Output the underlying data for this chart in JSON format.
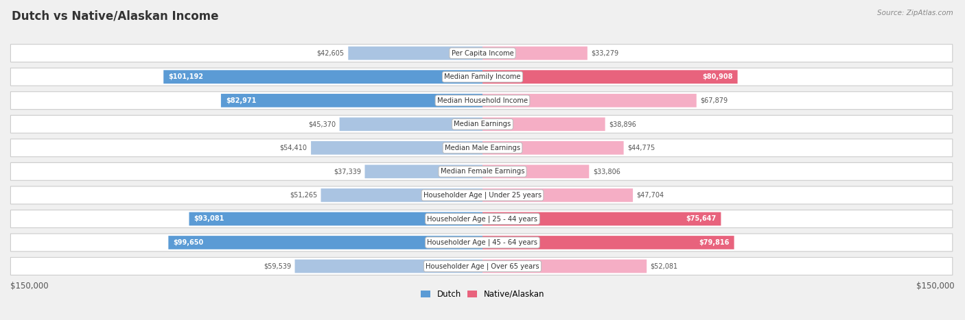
{
  "title": "Dutch vs Native/Alaskan Income",
  "source": "Source: ZipAtlas.com",
  "categories": [
    "Per Capita Income",
    "Median Family Income",
    "Median Household Income",
    "Median Earnings",
    "Median Male Earnings",
    "Median Female Earnings",
    "Householder Age | Under 25 years",
    "Householder Age | 25 - 44 years",
    "Householder Age | 45 - 64 years",
    "Householder Age | Over 65 years"
  ],
  "dutch_values": [
    42605,
    101192,
    82971,
    45370,
    54410,
    37339,
    51265,
    93081,
    99650,
    59539
  ],
  "native_values": [
    33279,
    80908,
    67879,
    38896,
    44775,
    33806,
    47704,
    75647,
    79816,
    52081
  ],
  "dutch_labels": [
    "$42,605",
    "$101,192",
    "$82,971",
    "$45,370",
    "$54,410",
    "$37,339",
    "$51,265",
    "$93,081",
    "$99,650",
    "$59,539"
  ],
  "native_labels": [
    "$33,279",
    "$80,908",
    "$67,879",
    "$38,896",
    "$44,775",
    "$33,806",
    "$47,704",
    "$75,647",
    "$79,816",
    "$52,081"
  ],
  "dutch_color_light": "#aac4e2",
  "dutch_color_dark": "#5b9bd5",
  "native_color_light": "#f5aec5",
  "native_color_dark": "#e8637d",
  "max_value": 150000,
  "xlabel_left": "$150,000",
  "xlabel_right": "$150,000",
  "legend_dutch": "Dutch",
  "legend_native": "Native/Alaskan",
  "bg_color": "#f0f0f0",
  "row_bg": "#ffffff",
  "row_border": "#cccccc",
  "label_threshold": 70000,
  "title_color": "#333333",
  "source_color": "#888888"
}
